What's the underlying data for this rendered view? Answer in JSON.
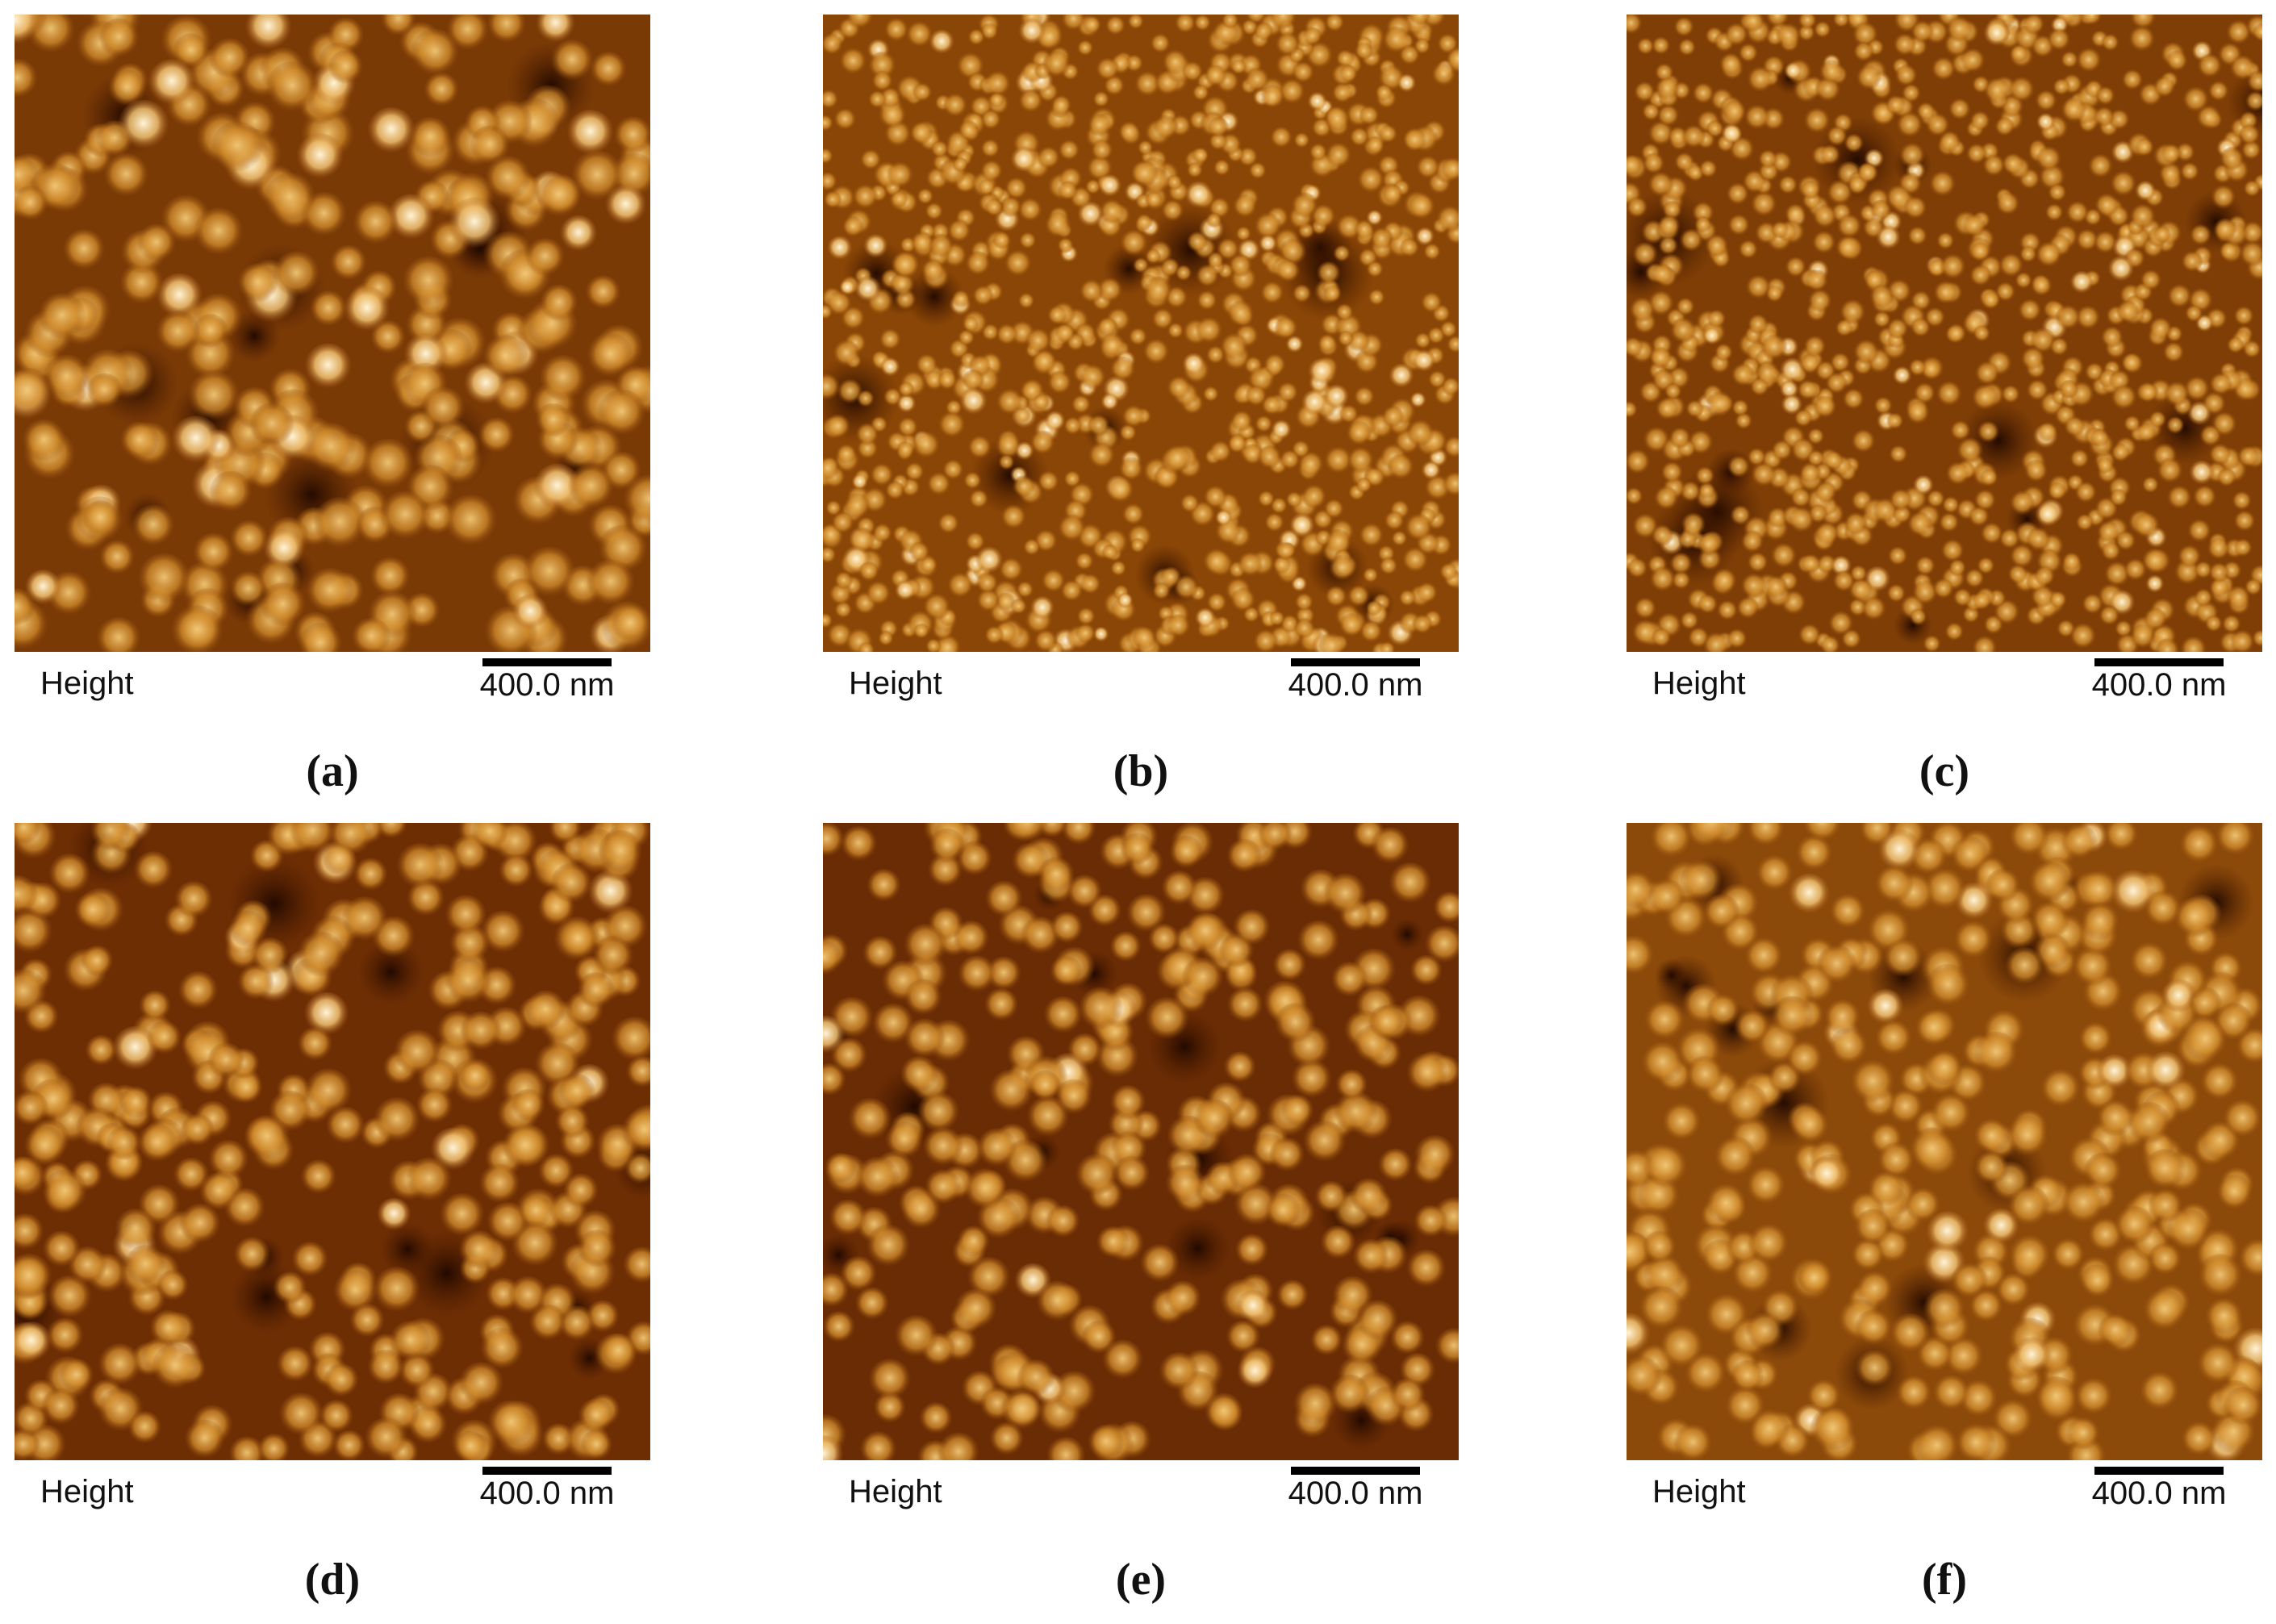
{
  "panels": [
    {
      "height_label": "Height",
      "scale_label": "400.0 nm",
      "label": "(a)"
    },
    {
      "height_label": "Height",
      "scale_label": "400.0 nm",
      "label": "(b)"
    },
    {
      "height_label": "Height",
      "scale_label": "400.0 nm",
      "label": "(c)"
    },
    {
      "height_label": "Height",
      "scale_label": "400.0 nm",
      "label": "(d)"
    },
    {
      "height_label": "Height",
      "scale_label": "400.0 nm",
      "label": "(e)"
    },
    {
      "height_label": "Height",
      "scale_label": "400.0 nm",
      "label": "(f)"
    }
  ]
}
